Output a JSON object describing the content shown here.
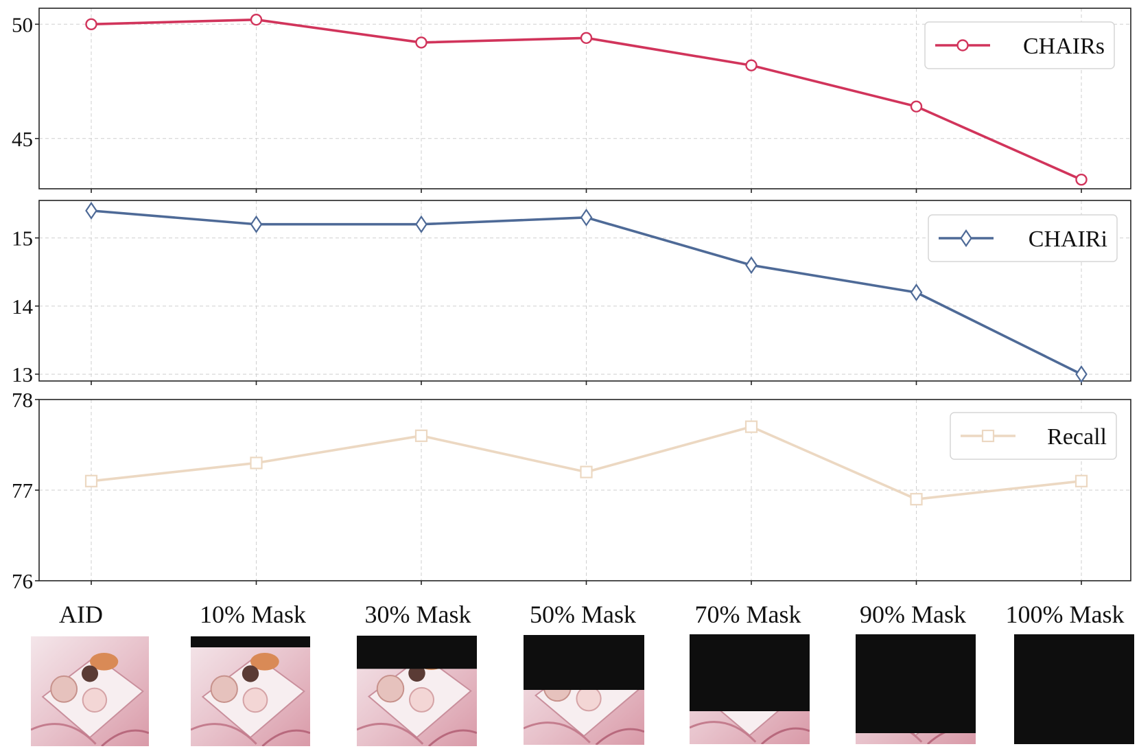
{
  "chart_data": [
    {
      "type": "line",
      "categories": [
        "AID",
        "10% Mask",
        "30% Mask",
        "50% Mask",
        "70% Mask",
        "90% Mask",
        "100% Mask"
      ],
      "series": [
        {
          "name": "CHAIRs",
          "values": [
            50.0,
            50.2,
            49.2,
            49.4,
            48.2,
            46.4,
            43.2
          ]
        }
      ],
      "ylim": [
        42.8,
        50.7
      ],
      "yticks": [
        45,
        50
      ],
      "marker": "circle",
      "color": "#d1345b",
      "legend_position": "top-right",
      "grid": true
    },
    {
      "type": "line",
      "categories": [
        "AID",
        "10% Mask",
        "30% Mask",
        "50% Mask",
        "70% Mask",
        "90% Mask",
        "100% Mask"
      ],
      "series": [
        {
          "name": "CHAIRi",
          "values": [
            15.4,
            15.2,
            15.2,
            15.3,
            14.6,
            14.2,
            13.0
          ]
        }
      ],
      "ylim": [
        12.9,
        15.55
      ],
      "yticks": [
        13,
        14,
        15
      ],
      "marker": "diamond",
      "color": "#4e6a97",
      "legend_position": "top-right",
      "grid": true
    },
    {
      "type": "line",
      "categories": [
        "AID",
        "10% Mask",
        "30% Mask",
        "50% Mask",
        "70% Mask",
        "90% Mask",
        "100% Mask"
      ],
      "series": [
        {
          "name": "Recall",
          "values": [
            77.1,
            77.3,
            77.6,
            77.2,
            77.7,
            76.9,
            77.1
          ]
        }
      ],
      "ylim": [
        76,
        78
      ],
      "yticks": [
        76,
        77,
        78
      ],
      "marker": "square",
      "color": "#ecd8c2",
      "legend_position": "top-right",
      "grid": true
    }
  ],
  "images": {
    "masks": [
      0,
      10,
      30,
      50,
      70,
      90,
      100
    ]
  }
}
